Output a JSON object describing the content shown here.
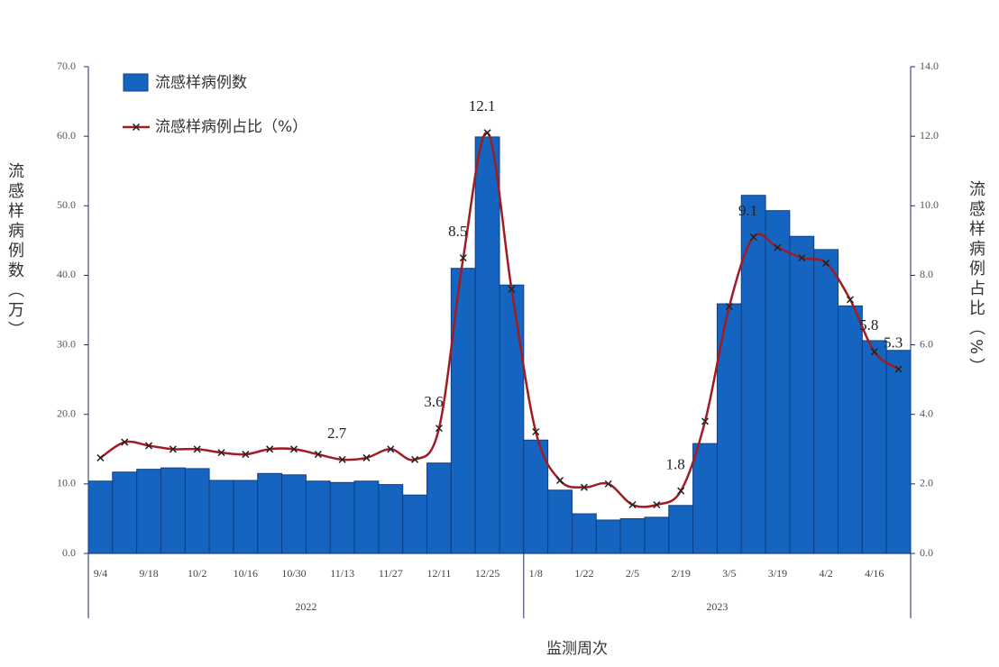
{
  "chart_data": {
    "type": "bar-line",
    "x_title": "监测周次",
    "y_title": "流感样病例数（万）",
    "y2_title": "流感样病例占比（%）",
    "categories": [
      "9/4",
      null,
      "9/18",
      null,
      "10/2",
      null,
      "10/16",
      null,
      "10/30",
      null,
      "11/13",
      null,
      "11/27",
      null,
      "12/11",
      null,
      "12/25",
      null,
      "1/8",
      null,
      "1/22",
      null,
      "2/5",
      null,
      "2/19",
      null,
      "3/5",
      null,
      "3/19",
      null,
      "4/2",
      null,
      "4/16",
      null
    ],
    "x_groups": [
      {
        "label": "2022",
        "count": 18
      },
      {
        "label": "2023",
        "count": 16
      }
    ],
    "series": [
      {
        "name": "流感样病例数",
        "type": "bar",
        "color": "#1565c0",
        "edge": "#0d3f86",
        "values": [
          10.4,
          11.7,
          12.1,
          12.3,
          12.2,
          10.5,
          10.5,
          11.5,
          11.3,
          10.4,
          10.2,
          10.4,
          9.9,
          8.4,
          13.0,
          41.0,
          59.9,
          38.6,
          16.3,
          9.1,
          5.7,
          4.8,
          5.0,
          5.2,
          6.9,
          15.8,
          35.9,
          51.5,
          49.3,
          45.6,
          43.7,
          35.6,
          30.6,
          29.2
        ]
      },
      {
        "name": "流感样病例占比（%）",
        "type": "line",
        "axis": "y2",
        "color": "#a01c22",
        "values": [
          2.75,
          3.2,
          3.1,
          3.0,
          3.0,
          2.9,
          2.85,
          3.0,
          3.0,
          2.85,
          2.7,
          2.75,
          3.0,
          2.7,
          3.6,
          8.5,
          12.1,
          7.6,
          3.5,
          2.1,
          1.9,
          2.0,
          1.4,
          1.4,
          1.8,
          3.8,
          7.1,
          9.1,
          8.8,
          8.5,
          8.35,
          7.3,
          5.8,
          5.3
        ],
        "value_labels": [
          null,
          null,
          null,
          null,
          null,
          null,
          null,
          null,
          null,
          null,
          "2.7",
          null,
          null,
          null,
          "3.6",
          "8.5",
          "12.1",
          null,
          null,
          null,
          null,
          null,
          null,
          null,
          "1.8",
          null,
          null,
          "9.1",
          null,
          null,
          null,
          null,
          "5.8",
          "5.3"
        ]
      }
    ],
    "ylim": [
      0,
      70
    ],
    "yticks": [
      {
        "value": 0,
        "label": "0.0"
      },
      {
        "value": 10,
        "label": "10.0"
      },
      {
        "value": 20,
        "label": "20.0"
      },
      {
        "value": 30,
        "label": "30.0"
      },
      {
        "value": 40,
        "label": "40.0"
      },
      {
        "value": 50,
        "label": "50.0"
      },
      {
        "value": 60,
        "label": "60.0"
      },
      {
        "value": 70,
        "label": "70.0"
      }
    ],
    "y2lim": [
      0,
      14
    ],
    "y2ticks": [
      {
        "value": 0,
        "label": "0.0"
      },
      {
        "value": 2,
        "label": "2.0"
      },
      {
        "value": 4,
        "label": "4.0"
      },
      {
        "value": 6,
        "label": "6.0"
      },
      {
        "value": 8,
        "label": "8.0"
      },
      {
        "value": 10,
        "label": "10.0"
      },
      {
        "value": 12,
        "label": "12.0"
      },
      {
        "value": 14,
        "label": "14.0"
      }
    ],
    "legend": "upper left"
  }
}
